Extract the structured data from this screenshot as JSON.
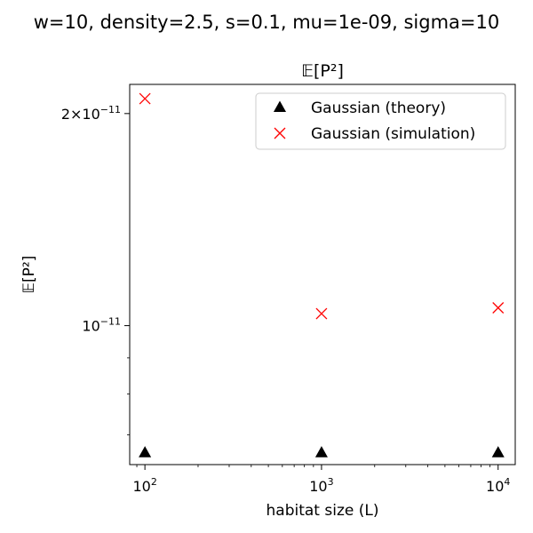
{
  "chart_data": {
    "type": "scatter",
    "suptitle": "w=10, density=2.5, s=0.1, mu=1e-09, sigma=10",
    "title": "𝔼[P²]",
    "xlabel": "habitat size (L)",
    "ylabel": "𝔼[P²]",
    "xscale": "log",
    "yscale": "log",
    "xlim": [
      82,
      12500
    ],
    "ylim": [
      6.35e-12,
      2.2e-11
    ],
    "x_ticks": [
      {
        "value": 100,
        "base": "10",
        "exp": "2"
      },
      {
        "value": 1000,
        "base": "10",
        "exp": "3"
      },
      {
        "value": 10000,
        "base": "10",
        "exp": "4"
      }
    ],
    "y_ticks": [
      {
        "value": 1e-11,
        "mant": "",
        "base": "10",
        "exp": "−11"
      },
      {
        "value": 2e-11,
        "mant": "2×",
        "base": "10",
        "exp": "−11"
      }
    ],
    "y_minor_ticks": [
      7e-12,
      8e-12,
      9e-12
    ],
    "legend_position": "upper-right",
    "grid": false,
    "series": [
      {
        "name": "Gaussian (theory)",
        "marker": "triangle",
        "color": "#000000",
        "x": [
          100,
          1000,
          10000
        ],
        "y": [
          6.6e-12,
          6.6e-12,
          6.6e-12
        ]
      },
      {
        "name": "Gaussian (simulation)",
        "marker": "x",
        "color": "#ff0000",
        "x": [
          100,
          1000,
          10000
        ],
        "y": [
          2.1e-11,
          1.04e-11,
          1.06e-11
        ]
      }
    ]
  }
}
